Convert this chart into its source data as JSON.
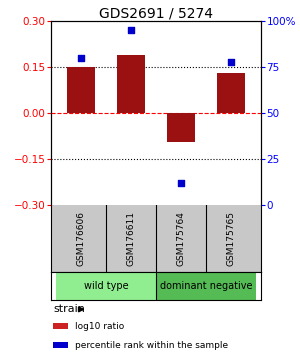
{
  "title": "GDS2691 / 5274",
  "samples": [
    "GSM176606",
    "GSM176611",
    "GSM175764",
    "GSM175765"
  ],
  "log10_ratio": [
    0.15,
    0.19,
    -0.095,
    0.13
  ],
  "percentile_rank": [
    80,
    95,
    12,
    78
  ],
  "groups": [
    {
      "label": "wild type",
      "color": "#90EE90",
      "samples": [
        0,
        1
      ]
    },
    {
      "label": "dominant negative",
      "color": "#55BB55",
      "samples": [
        2,
        3
      ]
    }
  ],
  "bar_color": "#9B1010",
  "dot_color": "#0000CC",
  "ylim_left": [
    -0.3,
    0.3
  ],
  "ylim_right": [
    0,
    100
  ],
  "yticks_left": [
    -0.3,
    -0.15,
    0,
    0.15,
    0.3
  ],
  "yticks_right": [
    0,
    25,
    50,
    75,
    100
  ],
  "ytick_labels_right": [
    "0",
    "25",
    "50",
    "75",
    "100%"
  ],
  "hlines": [
    0.15,
    -0.15
  ],
  "hline_zero_color": "red",
  "hline_color": "black",
  "bar_width": 0.55,
  "strain_label": "strain",
  "legend_items": [
    {
      "color": "#CC2222",
      "label": "log10 ratio"
    },
    {
      "color": "#0000CC",
      "label": "percentile rank within the sample"
    }
  ],
  "label_bg": "#C8C8C8",
  "figsize": [
    3.0,
    3.54
  ],
  "dpi": 100
}
